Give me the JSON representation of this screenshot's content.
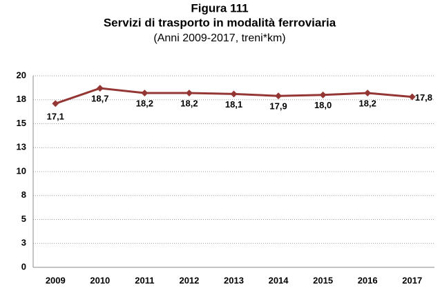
{
  "chart_data": {
    "type": "line",
    "title": "Figura 111",
    "subtitle": "Servizi di trasporto in modalità ferroviaria",
    "caption": "(Anni 2009-2017, treni*km)",
    "categories": [
      "2009",
      "2010",
      "2011",
      "2012",
      "2013",
      "2014",
      "2015",
      "2016",
      "2017"
    ],
    "values": [
      17.1,
      18.7,
      18.2,
      18.2,
      18.1,
      17.9,
      18.0,
      18.2,
      17.8
    ],
    "value_labels": [
      "17,1",
      "18,7",
      "18,2",
      "18,2",
      "18,1",
      "17,9",
      "18,0",
      "18,2",
      "17,8"
    ],
    "color": "#943634",
    "ylim": [
      0,
      20
    ],
    "yticks": [
      0,
      {
        "value": 2.5,
        "label": "3"
      },
      5,
      {
        "value": 7.5,
        "label": "8"
      },
      10,
      {
        "value": 12.5,
        "label": "13"
      },
      15,
      {
        "value": 17.5,
        "label": "18"
      },
      20
    ],
    "grid": true
  }
}
